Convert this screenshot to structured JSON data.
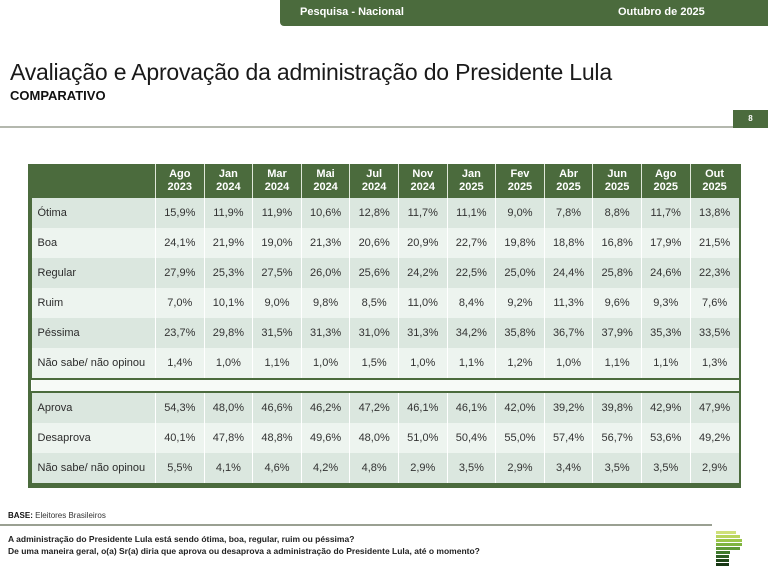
{
  "header": {
    "survey_label": "Pesquisa - Nacional",
    "date_label": "Outubro de 2025"
  },
  "title": "Avaliação e Aprovação da administração do Presidente Lula",
  "subtitle": "COMPARATIVO",
  "page_number": "8",
  "colors": {
    "brand_green": "#4b6b3d",
    "row_dark": "#dbe7df",
    "row_light": "#edf4ef"
  },
  "table": {
    "columns": [
      {
        "month": "Ago",
        "year": "2023"
      },
      {
        "month": "Jan",
        "year": "2024"
      },
      {
        "month": "Mar",
        "year": "2024"
      },
      {
        "month": "Mai",
        "year": "2024"
      },
      {
        "month": "Jul",
        "year": "2024"
      },
      {
        "month": "Nov",
        "year": "2024"
      },
      {
        "month": "Jan",
        "year": "2025"
      },
      {
        "month": "Fev",
        "year": "2025"
      },
      {
        "month": "Abr",
        "year": "2025"
      },
      {
        "month": "Jun",
        "year": "2025"
      },
      {
        "month": "Ago",
        "year": "2025"
      },
      {
        "month": "Out",
        "year": "2025"
      }
    ],
    "evaluation_rows": [
      {
        "label": "Ótima",
        "values": [
          "15,9%",
          "11,9%",
          "11,9%",
          "10,6%",
          "12,8%",
          "11,7%",
          "11,1%",
          "9,0%",
          "7,8%",
          "8,8%",
          "11,7%",
          "13,8%"
        ]
      },
      {
        "label": "Boa",
        "values": [
          "24,1%",
          "21,9%",
          "19,0%",
          "21,3%",
          "20,6%",
          "20,9%",
          "22,7%",
          "19,8%",
          "18,8%",
          "16,8%",
          "17,9%",
          "21,5%"
        ]
      },
      {
        "label": "Regular",
        "values": [
          "27,9%",
          "25,3%",
          "27,5%",
          "26,0%",
          "25,6%",
          "24,2%",
          "22,5%",
          "25,0%",
          "24,4%",
          "25,8%",
          "24,6%",
          "22,3%"
        ]
      },
      {
        "label": "Ruim",
        "values": [
          "7,0%",
          "10,1%",
          "9,0%",
          "9,8%",
          "8,5%",
          "11,0%",
          "8,4%",
          "9,2%",
          "11,3%",
          "9,6%",
          "9,3%",
          "7,6%"
        ]
      },
      {
        "label": "Péssima",
        "values": [
          "23,7%",
          "29,8%",
          "31,5%",
          "31,3%",
          "31,0%",
          "31,3%",
          "34,2%",
          "35,8%",
          "36,7%",
          "37,9%",
          "35,3%",
          "33,5%"
        ]
      },
      {
        "label": "Não sabe/ não opinou",
        "values": [
          "1,4%",
          "1,0%",
          "1,1%",
          "1,0%",
          "1,5%",
          "1,0%",
          "1,1%",
          "1,2%",
          "1,0%",
          "1,1%",
          "1,1%",
          "1,3%"
        ]
      }
    ],
    "approval_rows": [
      {
        "label": "Aprova",
        "values": [
          "54,3%",
          "48,0%",
          "46,6%",
          "46,2%",
          "47,2%",
          "46,1%",
          "46,1%",
          "42,0%",
          "39,2%",
          "39,8%",
          "42,9%",
          "47,9%"
        ]
      },
      {
        "label": "Desaprova",
        "values": [
          "40,1%",
          "47,8%",
          "48,8%",
          "49,6%",
          "48,0%",
          "51,0%",
          "50,4%",
          "55,0%",
          "57,4%",
          "56,7%",
          "53,6%",
          "49,2%"
        ]
      },
      {
        "label": "Não sabe/ não opinou",
        "values": [
          "5,5%",
          "4,1%",
          "4,6%",
          "4,2%",
          "4,8%",
          "2,9%",
          "3,5%",
          "2,9%",
          "3,4%",
          "3,5%",
          "3,5%",
          "2,9%"
        ]
      }
    ]
  },
  "footer": {
    "base_label": "BASE:",
    "base_value": "Eleitores Brasileiros",
    "question_1": "A administração do Presidente Lula está sendo ótima, boa, regular, ruim ou péssima?",
    "question_2": "De uma maneira geral, o(a) Sr(a) diria que aprova ou desaprova a administração do Presidente Lula, até o momento?",
    "logo_icon": "stacked-bars-logo-icon"
  }
}
